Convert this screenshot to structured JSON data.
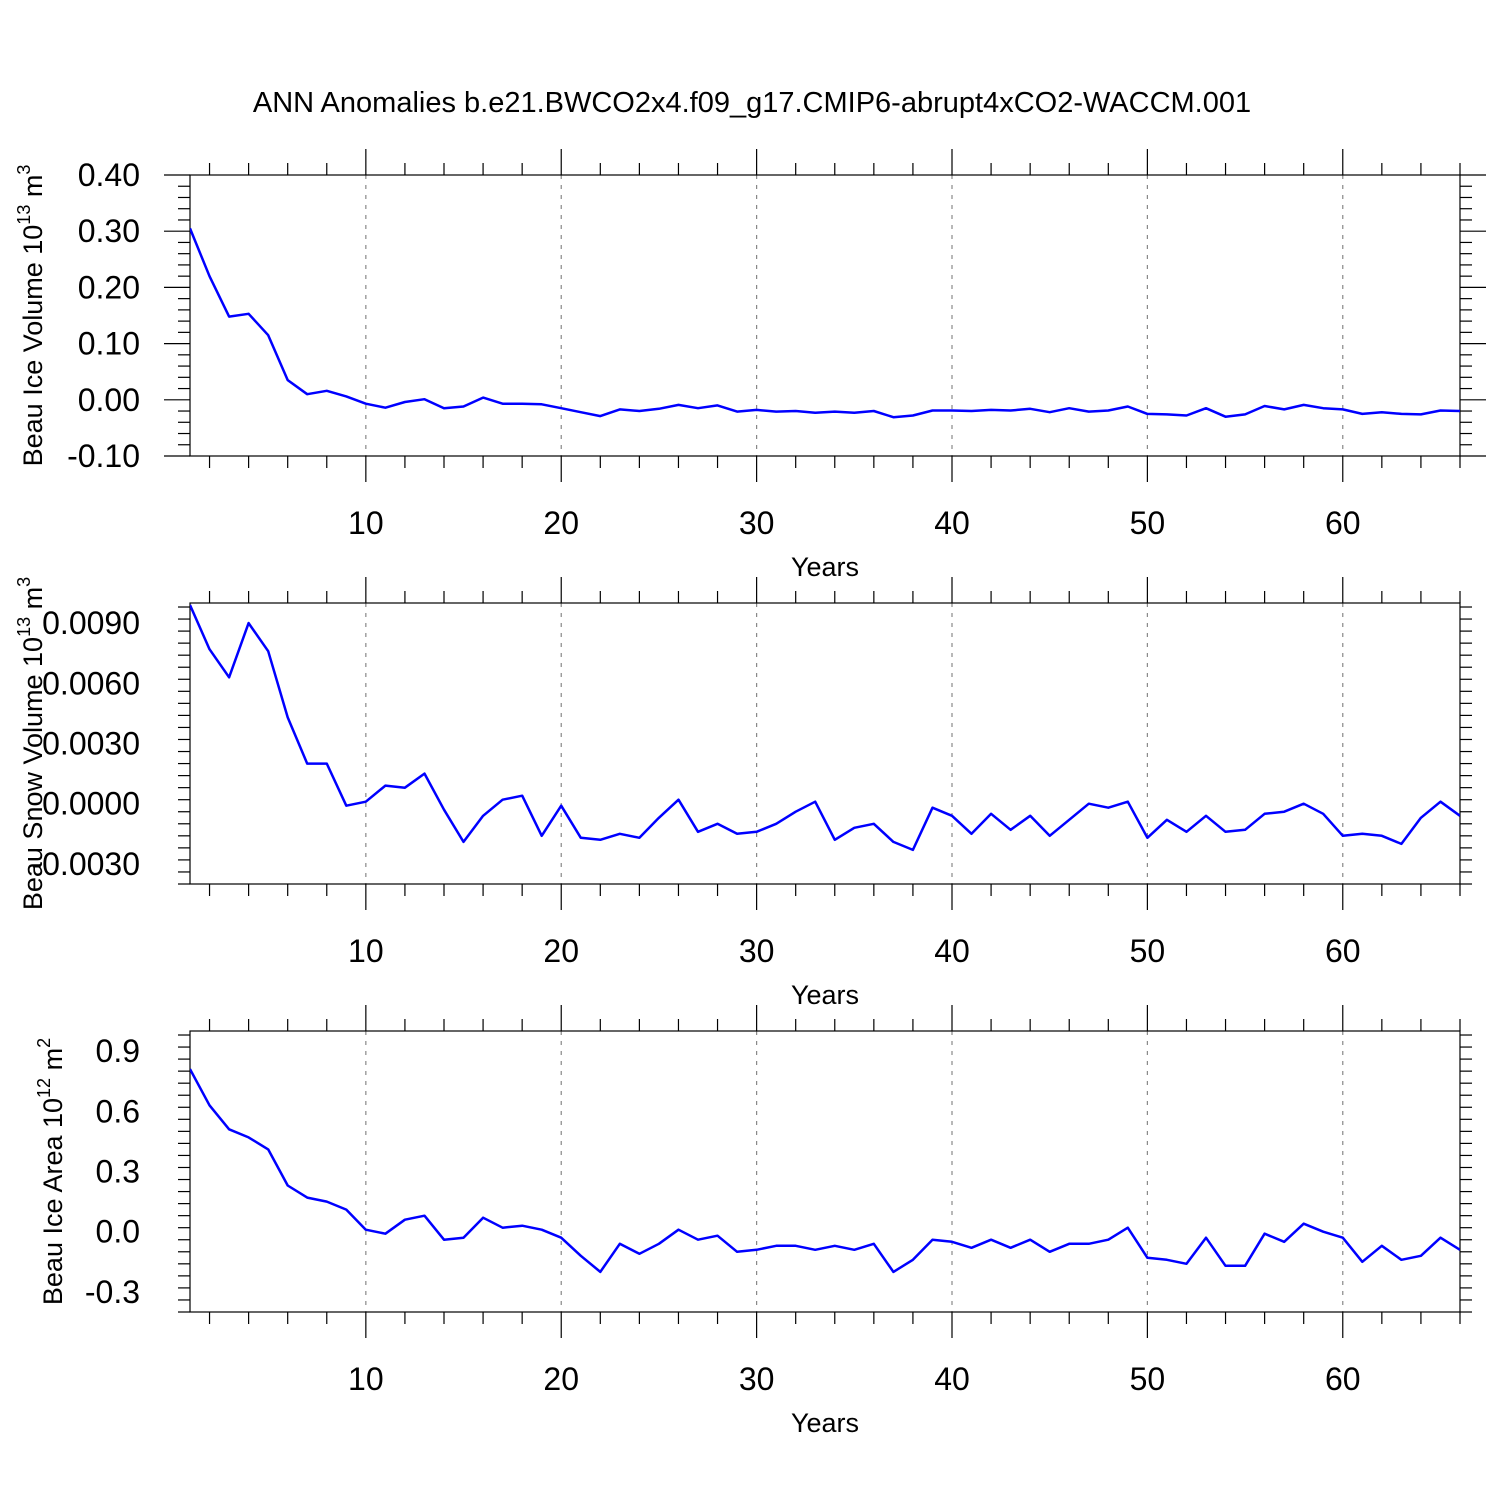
{
  "title": "ANN Anomalies b.e21.BWCO2x4.f09_g17.CMIP6-abrupt4xCO2-WACCM.001",
  "colors": {
    "series": "#0000ff",
    "grid": "#888888",
    "axis": "#000000"
  },
  "chart_data": [
    {
      "type": "line",
      "xlabel": "Years",
      "ylabel": "Beau Ice Volume 10",
      "ylabel_exp": "13",
      "ylabel_unit": " m",
      "ylabel_unit_exp": "3",
      "xlim": [
        1,
        66
      ],
      "ylim": [
        -0.1,
        0.4
      ],
      "xticks": [
        10,
        20,
        30,
        40,
        50,
        60
      ],
      "xtick_labels": [
        "10",
        "20",
        "30",
        "40",
        "50",
        "60"
      ],
      "yticks": [
        -0.1,
        0.0,
        0.1,
        0.2,
        0.3,
        0.4
      ],
      "ytick_labels": [
        "-0.10",
        "0.00",
        "0.10",
        "0.20",
        "0.30",
        "0.40"
      ],
      "grid": "x-dashed",
      "x": [
        1,
        2,
        3,
        4,
        5,
        6,
        7,
        8,
        9,
        10,
        11,
        12,
        13,
        14,
        15,
        16,
        17,
        18,
        19,
        20,
        21,
        22,
        23,
        24,
        25,
        26,
        27,
        28,
        29,
        30,
        31,
        32,
        33,
        34,
        35,
        36,
        37,
        38,
        39,
        40,
        41,
        42,
        43,
        44,
        45,
        46,
        47,
        48,
        49,
        50,
        51,
        52,
        53,
        54,
        55,
        56,
        57,
        58,
        59,
        60,
        61,
        62,
        63,
        64,
        65,
        66
      ],
      "y": [
        0.305,
        0.22,
        0.148,
        0.153,
        0.115,
        0.035,
        0.01,
        0.016,
        0.006,
        -0.007,
        -0.014,
        -0.004,
        0.001,
        -0.015,
        -0.012,
        0.004,
        -0.007,
        -0.007,
        -0.008,
        -0.015,
        -0.022,
        -0.029,
        -0.017,
        -0.02,
        -0.016,
        -0.009,
        -0.015,
        -0.01,
        -0.021,
        -0.018,
        -0.021,
        -0.02,
        -0.023,
        -0.021,
        -0.023,
        -0.02,
        -0.031,
        -0.028,
        -0.019,
        -0.019,
        -0.02,
        -0.018,
        -0.019,
        -0.016,
        -0.022,
        -0.015,
        -0.021,
        -0.019,
        -0.012,
        -0.025,
        -0.026,
        -0.028,
        -0.015,
        -0.03,
        -0.026,
        -0.011,
        -0.017,
        -0.009,
        -0.015,
        -0.017,
        -0.025,
        -0.022,
        -0.025,
        -0.026,
        -0.019,
        -0.02
      ]
    },
    {
      "type": "line",
      "xlabel": "Years",
      "ylabel": "Beau Snow Volume 10",
      "ylabel_exp": "13",
      "ylabel_unit": " m",
      "ylabel_unit_exp": "3",
      "xlim": [
        1,
        66
      ],
      "ylim": [
        -0.004,
        0.01
      ],
      "xticks": [
        10,
        20,
        30,
        40,
        50,
        60
      ],
      "xtick_labels": [
        "10",
        "20",
        "30",
        "40",
        "50",
        "60"
      ],
      "yticks": [
        -0.003,
        0.0,
        0.003,
        0.006,
        0.009
      ],
      "ytick_labels": [
        "-0.0030",
        "0.0000",
        "0.0030",
        "0.0060",
        "0.0090"
      ],
      "grid": "x-dashed",
      "x": [
        1,
        2,
        3,
        4,
        5,
        6,
        7,
        8,
        9,
        10,
        11,
        12,
        13,
        14,
        15,
        16,
        17,
        18,
        19,
        20,
        21,
        22,
        23,
        24,
        25,
        26,
        27,
        28,
        29,
        30,
        31,
        32,
        33,
        34,
        35,
        36,
        37,
        38,
        39,
        40,
        41,
        42,
        43,
        44,
        45,
        46,
        47,
        48,
        49,
        50,
        51,
        52,
        53,
        54,
        55,
        56,
        57,
        58,
        59,
        60,
        61,
        62,
        63,
        64,
        65,
        66
      ],
      "y": [
        0.0099,
        0.0077,
        0.0063,
        0.009,
        0.0076,
        0.0043,
        0.002,
        0.002,
        -0.0001,
        0.0001,
        0.0009,
        0.0008,
        0.0015,
        -0.0003,
        -0.0019,
        -0.0006,
        0.0002,
        0.0004,
        -0.0016,
        -0.0001,
        -0.0017,
        -0.0018,
        -0.0015,
        -0.0017,
        -0.0007,
        0.0002,
        -0.0014,
        -0.001,
        -0.0015,
        -0.0014,
        -0.001,
        -0.0004,
        0.0001,
        -0.0018,
        -0.0012,
        -0.001,
        -0.0019,
        -0.0023,
        -0.0002,
        -0.0006,
        -0.0015,
        -0.0005,
        -0.0013,
        -0.0006,
        -0.0016,
        -0.0008,
        0.0,
        -0.0002,
        0.0001,
        -0.0017,
        -0.0008,
        -0.0014,
        -0.0006,
        -0.0014,
        -0.0013,
        -0.0005,
        -0.0004,
        0.0,
        -0.0005,
        -0.0016,
        -0.0015,
        -0.0016,
        -0.002,
        -0.0007,
        0.0001,
        -0.0006
      ]
    },
    {
      "type": "line",
      "xlabel": "Years",
      "ylabel": "Beau Ice Area 10",
      "ylabel_exp": "12",
      "ylabel_unit": " m",
      "ylabel_unit_exp": "2",
      "xlim": [
        1,
        66
      ],
      "ylim": [
        -0.4,
        1.0
      ],
      "xticks": [
        10,
        20,
        30,
        40,
        50,
        60
      ],
      "xtick_labels": [
        "10",
        "20",
        "30",
        "40",
        "50",
        "60"
      ],
      "yticks": [
        -0.3,
        0.0,
        0.3,
        0.6,
        0.9
      ],
      "ytick_labels": [
        "-0.3",
        "0.0",
        "0.3",
        "0.6",
        "0.9"
      ],
      "grid": "x-dashed",
      "x": [
        1,
        2,
        3,
        4,
        5,
        6,
        7,
        8,
        9,
        10,
        11,
        12,
        13,
        14,
        15,
        16,
        17,
        18,
        19,
        20,
        21,
        22,
        23,
        24,
        25,
        26,
        27,
        28,
        29,
        30,
        31,
        32,
        33,
        34,
        35,
        36,
        37,
        38,
        39,
        40,
        41,
        42,
        43,
        44,
        45,
        46,
        47,
        48,
        49,
        50,
        51,
        52,
        53,
        54,
        55,
        56,
        57,
        58,
        59,
        60,
        61,
        62,
        63,
        64,
        65,
        66
      ],
      "y": [
        0.81,
        0.63,
        0.51,
        0.47,
        0.41,
        0.23,
        0.17,
        0.15,
        0.11,
        0.01,
        -0.01,
        0.06,
        0.08,
        -0.04,
        -0.03,
        0.07,
        0.02,
        0.03,
        0.01,
        -0.03,
        -0.12,
        -0.2,
        -0.06,
        -0.11,
        -0.06,
        0.01,
        -0.04,
        -0.02,
        -0.1,
        -0.09,
        -0.07,
        -0.07,
        -0.09,
        -0.07,
        -0.09,
        -0.06,
        -0.2,
        -0.14,
        -0.04,
        -0.05,
        -0.08,
        -0.04,
        -0.08,
        -0.04,
        -0.1,
        -0.06,
        -0.06,
        -0.04,
        0.02,
        -0.13,
        -0.14,
        -0.16,
        -0.03,
        -0.17,
        -0.17,
        -0.01,
        -0.05,
        0.04,
        0.0,
        -0.03,
        -0.15,
        -0.07,
        -0.14,
        -0.12,
        -0.03,
        -0.09
      ]
    }
  ]
}
